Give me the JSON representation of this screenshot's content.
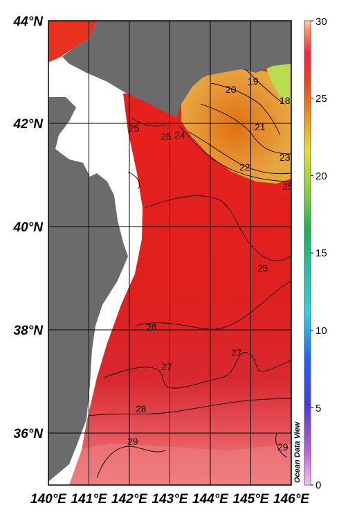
{
  "map": {
    "lat_labels": [
      "44°N",
      "42°N",
      "40°N",
      "38°N",
      "36°N"
    ],
    "lon_labels": [
      "140°E",
      "141°E",
      "142°E",
      "143°E",
      "144°E",
      "145°E",
      "146°E"
    ],
    "contour_labels": [
      "19",
      "20",
      "18",
      "21",
      "25",
      "24",
      "22",
      "23",
      "25",
      "25",
      "25",
      "26",
      "27",
      "27",
      "28",
      "29",
      "29"
    ],
    "credit": "Ocean Data View",
    "colors": {
      "land": "#6b6b6b",
      "water_warm": "#e8201c",
      "frame": "#000000"
    }
  },
  "colorbar": {
    "ticks": [
      "30",
      "25",
      "20",
      "15",
      "10",
      "5",
      "0"
    ],
    "min": 0,
    "max": 30
  }
}
